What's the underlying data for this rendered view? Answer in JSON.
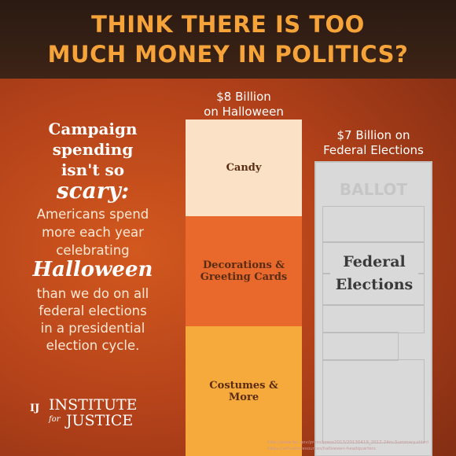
{
  "header": {
    "title_lines": [
      "THINK THERE IS TOO",
      "MUCH MONEY IN POLITICS?"
    ]
  },
  "sidebar": {
    "lines": [
      "Campaign",
      "spending",
      "isn't so",
      "scary:",
      "Americans spend",
      "more each year",
      "celebrating",
      "Halloween",
      "than we do on all",
      "federal elections",
      "in a presidential",
      "election cycle."
    ]
  },
  "halloween_bar": {
    "label_lines": [
      "$8 Billion",
      "on Halloween"
    ],
    "segments": [
      "Candy",
      "Decorations & Greeting Cards",
      "Costumes & More"
    ]
  },
  "elections_bar": {
    "label_lines": [
      "$7 Billion on",
      "Federal Elections"
    ],
    "ballot_heading": "BALLOT",
    "ballot_text": "Federal Elections"
  },
  "logo": {
    "institute": "INSTITUTE",
    "for": "for",
    "justice": "JUSTICE",
    "mark": "IJ"
  },
  "sources": [
    "http://www.fec.gov/press/press2013/20130419_2012-24m-Summary.shtml",
    "https://nrf.com/resources/halloween-headquarters"
  ]
}
